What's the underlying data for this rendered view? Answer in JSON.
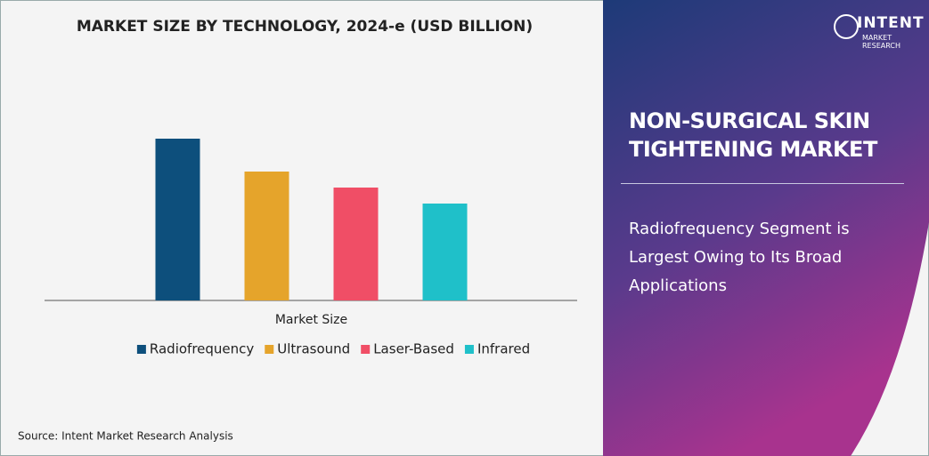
{
  "chart_data": {
    "type": "bar",
    "title": "MARKET SIZE BY TECHNOLOGY, 2024-e (USD BILLION)",
    "categories": [
      "Market Size"
    ],
    "series": [
      {
        "name": "Radiofrequency",
        "color": "#0d4f7c",
        "values": [
          1.82
        ]
      },
      {
        "name": "Ultrasound",
        "color": "#e5a42b",
        "values": [
          1.45
        ]
      },
      {
        "name": "Laser-Based",
        "color": "#f04e66",
        "values": [
          1.27
        ]
      },
      {
        "name": "Infrared",
        "color": "#1fc0c9",
        "values": [
          1.09
        ]
      }
    ],
    "ylim": [
      0,
      2
    ]
  },
  "source": "Source: Intent Market Research Analysis",
  "panel": {
    "brand": "INTENT",
    "brand_sub": "MARKET RESEARCH",
    "heading": "NON-SURGICAL SKIN TIGHTENING MARKET",
    "description": "Radiofrequency Segment is Largest Owing to Its Broad Applications"
  }
}
